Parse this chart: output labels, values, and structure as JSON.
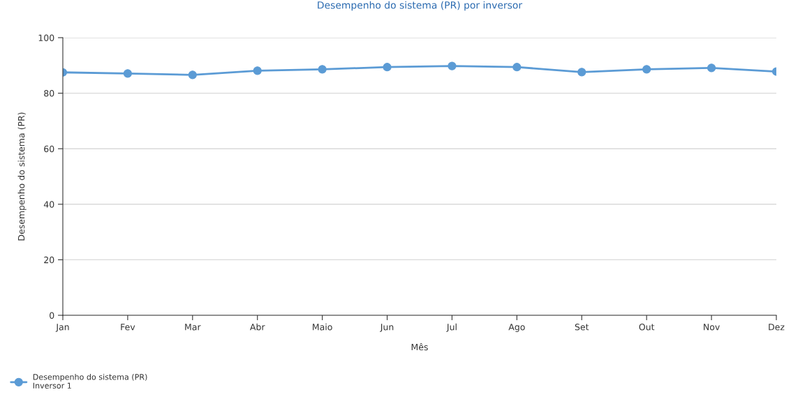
{
  "chart_data": {
    "type": "line",
    "title": "Desempenho do sistema (PR) por inversor",
    "xlabel": "Mês",
    "ylabel": "Desempenho do sistema (PR)",
    "categories": [
      "Jan",
      "Fev",
      "Mar",
      "Abr",
      "Maio",
      "Jun",
      "Jul",
      "Ago",
      "Set",
      "Out",
      "Nov",
      "Dez"
    ],
    "series": [
      {
        "name": "Desempenho do sistema (PR)\nInversor 1",
        "color": "#5b9bd5",
        "values": [
          87.5,
          87.1,
          86.6,
          88.1,
          88.6,
          89.4,
          89.8,
          89.4,
          87.6,
          88.6,
          89.1,
          87.8
        ]
      }
    ],
    "ylim": [
      0,
      100
    ],
    "yticks": [
      0,
      20,
      40,
      60,
      80,
      100
    ],
    "grid": "y",
    "legend": "bottom left",
    "marker": "circle",
    "line_style": "solid"
  }
}
